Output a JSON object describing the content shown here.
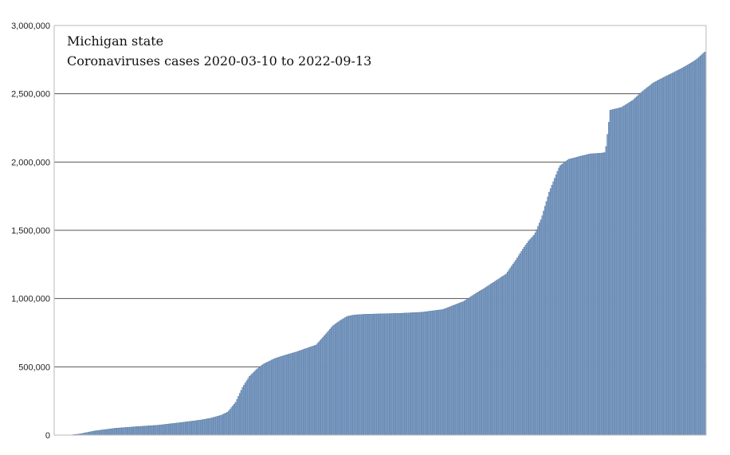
{
  "chart_data": {
    "type": "bar",
    "title": "Michigan state",
    "subtitle": "Coronaviruses cases 2020-03-10 to 2022-09-13",
    "xlabel": "",
    "ylabel": "",
    "x_range": [
      "2020-03-10",
      "2022-09-13"
    ],
    "ylim": [
      0,
      3000000
    ],
    "yticks": [
      0,
      500000,
      1000000,
      1500000,
      2000000,
      2500000,
      3000000
    ],
    "ytick_labels": [
      "0",
      "500,000",
      "1,000,000",
      "1,500,000",
      "2,000,000",
      "2,500,000",
      "3,000,000"
    ],
    "grid": true,
    "legend": "none",
    "bar_color": "#7f9fc6",
    "bar_edge_color": "#4e6f96",
    "series": [
      {
        "x": [
          "2020-03-10",
          "2020-03-25",
          "2020-04-15",
          "2020-05-15",
          "2020-06-15",
          "2020-07-15",
          "2020-08-15",
          "2020-09-15",
          "2020-10-01",
          "2020-10-15",
          "2020-10-25",
          "2020-11-05",
          "2020-11-15",
          "2020-11-25",
          "2020-12-05",
          "2020-12-15",
          "2020-12-31",
          "2021-01-15",
          "2021-02-01",
          "2021-03-01",
          "2021-03-15",
          "2021-03-25",
          "2021-04-05",
          "2021-04-15",
          "2021-04-25",
          "2021-05-10",
          "2021-05-31",
          "2021-06-30",
          "2021-07-31",
          "2021-08-31",
          "2021-09-15",
          "2021-09-30",
          "2021-10-15",
          "2021-10-31",
          "2021-11-15",
          "2021-11-30",
          "2021-12-15",
          "2021-12-25",
          "2022-01-01",
          "2022-01-10",
          "2022-01-20",
          "2022-01-31",
          "2022-02-15",
          "2022-02-28",
          "2022-03-15",
          "2022-03-31",
          "2022-04-15",
          "2022-04-22",
          "2022-04-29",
          "2022-05-15",
          "2022-05-31",
          "2022-06-15",
          "2022-06-30",
          "2022-07-15",
          "2022-07-31",
          "2022-08-15",
          "2022-08-31",
          "2022-09-13"
        ],
        "values": [
          50,
          8000,
          30000,
          50000,
          62000,
          72000,
          90000,
          110000,
          125000,
          145000,
          170000,
          240000,
          350000,
          430000,
          480000,
          520000,
          560000,
          585000,
          610000,
          660000,
          740000,
          800000,
          840000,
          870000,
          880000,
          885000,
          888000,
          892000,
          900000,
          920000,
          950000,
          980000,
          1030000,
          1080000,
          1130000,
          1180000,
          1290000,
          1370000,
          1420000,
          1470000,
          1590000,
          1780000,
          1970000,
          2020000,
          2040000,
          2060000,
          2065000,
          2070000,
          2380000,
          2400000,
          2450000,
          2520000,
          2580000,
          2620000,
          2660000,
          2700000,
          2750000,
          2810000
        ]
      }
    ]
  }
}
